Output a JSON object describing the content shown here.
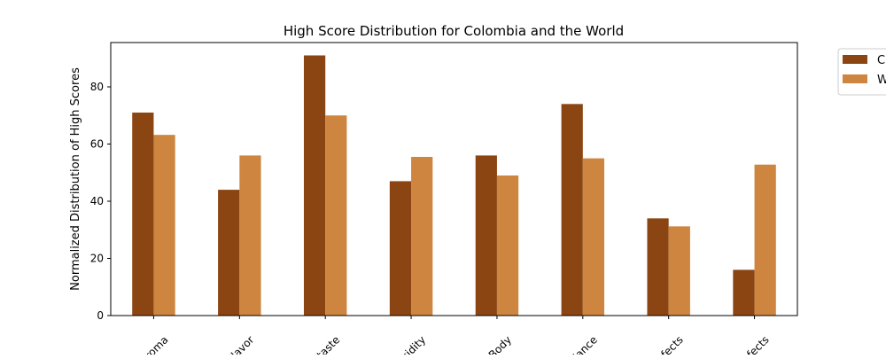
{
  "chart_data": {
    "type": "bar",
    "title": "High Score Distribution for Colombia and the World",
    "xlabel": "",
    "ylabel": "Normalized Distribution of High Scores",
    "ylim": [
      0,
      95.5
    ],
    "yticks": [
      0,
      20,
      40,
      60,
      80
    ],
    "categories": [
      "Aroma",
      "Flavor",
      "Aftertaste",
      "Acidity",
      "Body",
      "Balance",
      "Category.One.Defects",
      "Category.Two.Defects"
    ],
    "tick_labels_visible": [
      "Aroma",
      "Flavor",
      "rtaste",
      "Acidity",
      "Body",
      "lance",
      "efects",
      "efects"
    ],
    "series": [
      {
        "name": "C",
        "color": "#8B4513",
        "values": [
          71,
          44,
          91,
          47,
          56,
          74,
          34,
          16
        ]
      },
      {
        "name": "W",
        "color": "#CD853F",
        "values": [
          63.2,
          56,
          70,
          55.5,
          49,
          55,
          31.2,
          52.8
        ]
      }
    ],
    "legend_position": "outside-top-right",
    "grid": false
  }
}
